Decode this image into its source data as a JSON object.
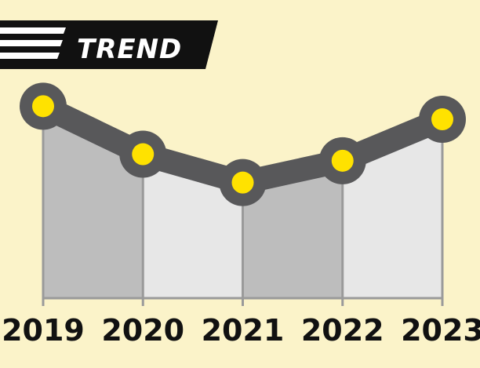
{
  "chart_data": {
    "type": "line",
    "title": "TREND",
    "categories": [
      "2019",
      "2020",
      "2021",
      "2022",
      "2023"
    ],
    "values": [
      8.8,
      6.6,
      5.3,
      6.3,
      8.2
    ],
    "ylim": [
      0,
      10
    ],
    "grid": false
  },
  "colors": {
    "background": "#fbf3c9",
    "banner": "#111111",
    "line": "#58585a",
    "marker_fill": "#ffe200",
    "area_dark": "#bdbdbd",
    "area_light": "#e7e7e7",
    "baseline": "#9a9a9a"
  }
}
